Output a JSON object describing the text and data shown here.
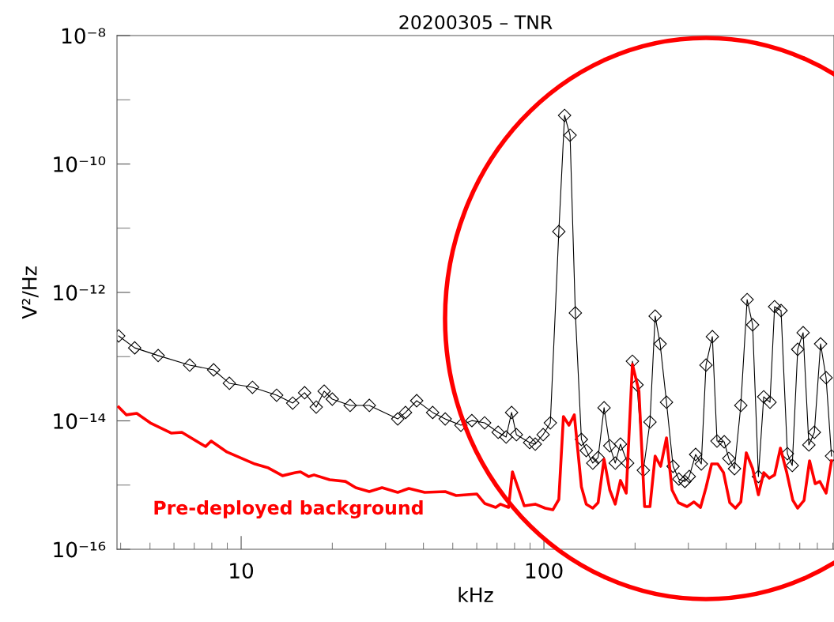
{
  "chart_data": {
    "type": "line",
    "title": "20200305 – TNR",
    "xlabel": "kHz",
    "ylabel": "V²/Hz",
    "log": "xy",
    "xlim": [
      3.89,
      908
    ],
    "xticks": [
      10,
      100
    ],
    "ylim": [
      1e-16,
      1e-08
    ],
    "yticks": [
      {
        "value": 1e-16,
        "label": "10⁻¹⁶"
      },
      {
        "value": 1e-14,
        "label": "10⁻¹⁴"
      },
      {
        "value": 1e-12,
        "label": "10⁻¹²"
      },
      {
        "value": 1e-10,
        "label": "10⁻¹⁰"
      },
      {
        "value": 1e-08,
        "label": "10⁻⁸"
      }
    ],
    "grid": false,
    "legend": false,
    "series": [
      {
        "color": "#000000",
        "marker": "diamond",
        "x": [
          3.94,
          4.45,
          5.32,
          6.76,
          8.11,
          9.14,
          10.9,
          13.1,
          14.8,
          16.2,
          17.7,
          18.8,
          20.0,
          22.9,
          26.5,
          32.9,
          34.9,
          38.0,
          42.9,
          47.2,
          53.2,
          57.8,
          63.7,
          70.6,
          75.0,
          78.2,
          81.1,
          89.7,
          93.6,
          99.4,
          105,
          112,
          117,
          122,
          127,
          133,
          138,
          145,
          151,
          158,
          165,
          172,
          179,
          189,
          196,
          203,
          213,
          224,
          233,
          242,
          254,
          267,
          279,
          292,
          302,
          317,
          331,
          343,
          360,
          373,
          394,
          408,
          426,
          447,
          469,
          489,
          511,
          532,
          558,
          578,
          607,
          637,
          661,
          689,
          718,
          750,
          782,
          820,
          855,
          891
        ],
        "values": [
          2.1e-13,
          1.37e-13,
          1.04e-13,
          7.38e-14,
          6.22e-14,
          3.85e-14,
          3.33e-14,
          2.51e-14,
          1.89e-14,
          2.74e-14,
          1.64e-14,
          2.9e-14,
          2.18e-14,
          1.74e-14,
          1.74e-14,
          1.07e-14,
          1.35e-14,
          2.06e-14,
          1.35e-14,
          1.07e-14,
          8.55e-15,
          1.01e-14,
          9.31e-15,
          6.64e-15,
          5.6e-15,
          1.35e-14,
          6.1e-15,
          4.59e-15,
          4.34e-15,
          6.1e-15,
          9.31e-15,
          8.87e-12,
          5.71e-10,
          2.81e-10,
          4.79e-13,
          5.14e-15,
          3.45e-15,
          2.2e-15,
          2.68e-15,
          1.6e-14,
          4.09e-15,
          2.2e-15,
          4.34e-15,
          2.2e-15,
          8.49e-14,
          3.63e-14,
          1.7e-15,
          9.59e-15,
          4.28e-13,
          1.58e-13,
          1.95e-14,
          1.96e-15,
          1.24e-15,
          1.14e-15,
          1.36e-15,
          3e-15,
          2.13e-15,
          7.38e-14,
          2.05e-13,
          4.85e-15,
          4.72e-15,
          2.6e-15,
          1.8e-15,
          1.74e-14,
          7.74e-13,
          3.13e-13,
          1.36e-15,
          2.37e-14,
          1.95e-14,
          6e-13,
          5.21e-13,
          3.08e-15,
          2.02e-15,
          1.3e-13,
          2.36e-13,
          4.22e-15,
          6.64e-15,
          1.58e-13,
          4.69e-14,
          2.83e-15
        ]
      },
      {
        "name": "Pre-deployed background",
        "color": "#ff0000",
        "marker": "none",
        "x": [
          3.94,
          4.18,
          4.52,
          5.01,
          5.89,
          6.37,
          7.63,
          7.96,
          8.98,
          11.1,
          12.3,
          13.7,
          15.1,
          15.7,
          16.7,
          17.4,
          19.6,
          22.1,
          23.9,
          26.5,
          29.2,
          32.9,
          35.8,
          40.4,
          47.2,
          51.3,
          60.0,
          63.7,
          69.3,
          71.8,
          76.4,
          78.7,
          86.1,
          93.6,
          101,
          107,
          112,
          116,
          121,
          126,
          133,
          138,
          145,
          151,
          158,
          165,
          172,
          179,
          187,
          196,
          206,
          215,
          224,
          233,
          243,
          254,
          265,
          278,
          297,
          313,
          329,
          343,
          358,
          375,
          392,
          411,
          429,
          447,
          466,
          489,
          511,
          532,
          555,
          578,
          604,
          634,
          664,
          689,
          723,
          754,
          787,
          815,
          855,
          891
        ],
        "values": [
          1.64e-14,
          1.24e-14,
          1.31e-14,
          9.31e-15,
          6.44e-15,
          6.64e-15,
          3.98e-15,
          4.85e-15,
          3.27e-15,
          2.13e-15,
          1.85e-15,
          1.4e-15,
          1.56e-15,
          1.61e-15,
          1.36e-15,
          1.44e-15,
          1.21e-15,
          1.14e-15,
          9.12e-16,
          7.91e-16,
          9.12e-16,
          7.69e-16,
          8.87e-16,
          7.69e-16,
          7.91e-16,
          6.87e-16,
          7.28e-16,
          5.18e-16,
          4.49e-16,
          5.04e-16,
          4.49e-16,
          1.61e-15,
          4.75e-16,
          5.04e-16,
          4.37e-16,
          4.12e-16,
          5.96e-16,
          1.17e-14,
          8.55e-15,
          1.24e-14,
          9.38e-16,
          5.04e-16,
          4.37e-16,
          5.32e-16,
          2.53e-15,
          8.38e-16,
          5.04e-16,
          1.18e-15,
          7.48e-16,
          7.59e-14,
          2.9e-14,
          4.62e-16,
          4.62e-16,
          2.83e-15,
          1.96e-15,
          5.43e-15,
          8.38e-16,
          5.32e-16,
          4.62e-16,
          5.47e-16,
          4.49e-16,
          9.12e-16,
          2.13e-15,
          2.13e-15,
          1.56e-15,
          5.32e-16,
          4.37e-16,
          5.47e-16,
          3.18e-15,
          1.8e-15,
          7.06e-16,
          1.56e-15,
          1.28e-15,
          1.44e-15,
          3.76e-15,
          1.56e-15,
          5.79e-16,
          4.37e-16,
          5.79e-16,
          2.39e-15,
          1.05e-15,
          1.14e-15,
          7.48e-16,
          2.39e-15
        ]
      }
    ]
  }
}
